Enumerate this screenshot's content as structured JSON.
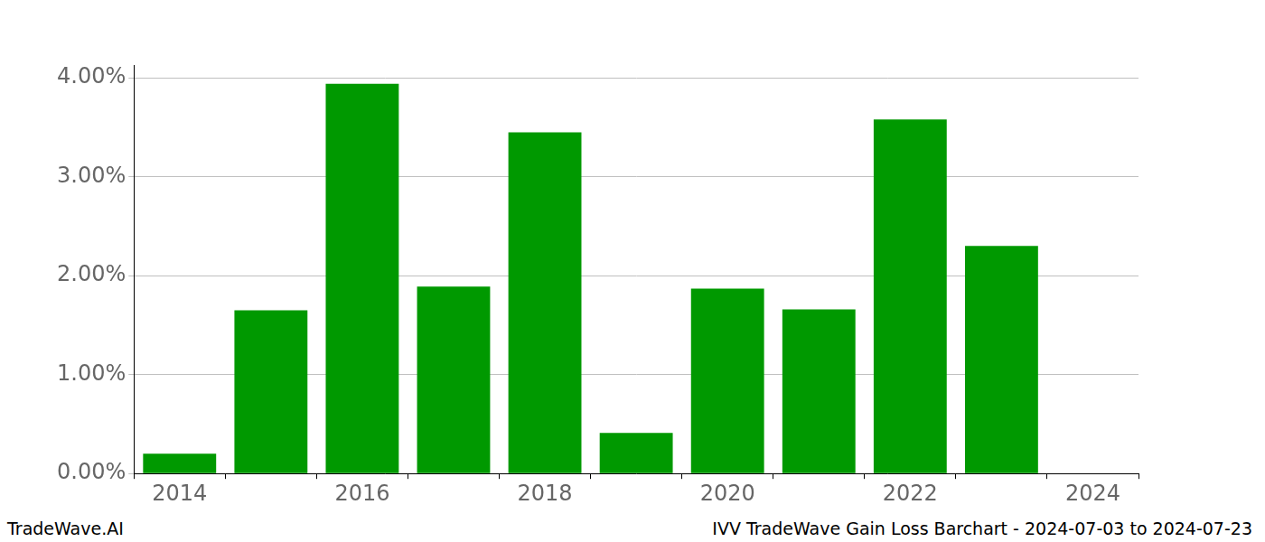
{
  "chart_data": {
    "type": "bar",
    "title": "IVV TradeWave Gain Loss Barchart - 2024-07-03 to 2024-07-23",
    "caption": "TradeWave.AI",
    "categories": [
      "2014",
      null,
      "2016",
      null,
      "2018",
      null,
      "2020",
      null,
      "2022",
      null,
      "2024"
    ],
    "values": [
      0.2,
      1.65,
      3.94,
      1.89,
      3.45,
      0.41,
      1.87,
      1.66,
      3.58,
      2.3,
      null
    ],
    "color": "#009900",
    "ylim": [
      0,
      4.13
    ],
    "yticks": [
      {
        "value": 0,
        "label": "0.00%"
      },
      {
        "value": 1,
        "label": "1.00%"
      },
      {
        "value": 2,
        "label": "2.00%"
      },
      {
        "value": 3,
        "label": "3.00%"
      },
      {
        "value": 4,
        "label": "4.00%"
      }
    ],
    "grid": true
  }
}
